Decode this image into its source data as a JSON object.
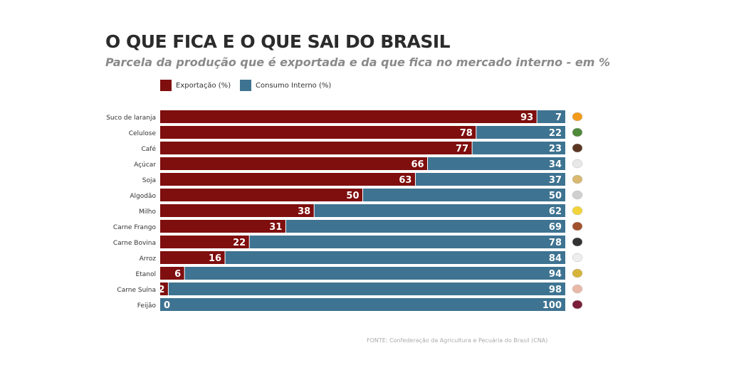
{
  "chart_data": {
    "type": "bar",
    "orientation": "horizontal",
    "stacked": true,
    "title": "O QUE FICA E O QUE SAI DO BRASIL",
    "subtitle": "Parcela da produção que é exportada e da que fica no mercado interno - em %",
    "categories": [
      "Suco de laranja",
      "Celulose",
      "Café",
      "Açúcar",
      "Soja",
      "Algodão",
      "Milho",
      "Carne Frango",
      "Carne Bovina",
      "Arroz",
      "Etanol",
      "Carne Suína",
      "Feijão"
    ],
    "icons": [
      "orange-icon",
      "leaf-icon",
      "coffee-bean-icon",
      "sugar-icon",
      "soybean-icon",
      "cotton-icon",
      "corn-icon",
      "chicken-icon",
      "cow-icon",
      "rice-icon",
      "ethanol-drop-icon",
      "pig-icon",
      "bean-icon"
    ],
    "series": [
      {
        "name": "Exportação (%)",
        "color": "#7f0e0e",
        "values": [
          93,
          78,
          77,
          66,
          63,
          50,
          38,
          31,
          22,
          16,
          6,
          2,
          0
        ]
      },
      {
        "name": "Consumo Interno (%)",
        "color": "#3e7391",
        "values": [
          7,
          22,
          23,
          34,
          37,
          50,
          62,
          69,
          78,
          84,
          94,
          98,
          100
        ]
      }
    ],
    "xlim": [
      0,
      100
    ],
    "legend": "top-left",
    "grid": false,
    "source": "FONTE: Confederação da Agricultura e Pecuária do Brasil (CNA)"
  }
}
